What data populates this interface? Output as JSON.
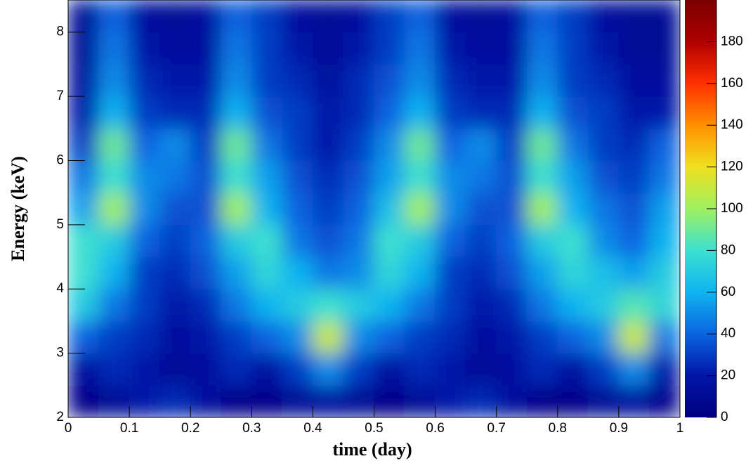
{
  "chart_data": {
    "type": "heatmap",
    "xlabel": "time (day)",
    "ylabel": "Energy (keV)",
    "xlim": [
      0,
      1
    ],
    "xticks": [
      0,
      0.1,
      0.2,
      0.3,
      0.4,
      0.5,
      0.6,
      0.7,
      0.8,
      0.9,
      1
    ],
    "ylim": [
      2,
      8.5
    ],
    "yticks": [
      2,
      3,
      4,
      5,
      6,
      7,
      8
    ],
    "zlim": [
      0,
      200
    ],
    "zticks": [
      0,
      20,
      40,
      60,
      80,
      100,
      120,
      140,
      160,
      180
    ],
    "colormap": [
      "#00007f",
      "#0016a8",
      "#0a64e0",
      "#10b4f0",
      "#3ce0d0",
      "#a0f060",
      "#f0e020",
      "#ff9000",
      "#ff3000",
      "#b00000",
      "#7a0000"
    ],
    "x": [
      0.025,
      0.075,
      0.125,
      0.175,
      0.225,
      0.275,
      0.325,
      0.375,
      0.425,
      0.475,
      0.525,
      0.575,
      0.625,
      0.675,
      0.725,
      0.775,
      0.825,
      0.875,
      0.925,
      0.975
    ],
    "y": [
      2.25,
      2.75,
      3.25,
      3.75,
      4.25,
      4.75,
      5.25,
      5.75,
      6.25,
      6.75,
      7.25,
      7.75,
      8.25
    ],
    "z": [
      [
        5,
        10,
        20,
        25,
        15,
        5,
        5,
        10,
        15,
        10,
        5,
        10,
        20,
        25,
        15,
        5,
        5,
        10,
        15,
        5
      ],
      [
        15,
        25,
        20,
        10,
        15,
        25,
        15,
        30,
        50,
        30,
        15,
        25,
        20,
        10,
        15,
        25,
        15,
        30,
        50,
        20
      ],
      [
        40,
        30,
        25,
        15,
        20,
        30,
        40,
        50,
        110,
        50,
        40,
        30,
        25,
        15,
        20,
        30,
        40,
        50,
        110,
        45
      ],
      [
        70,
        45,
        30,
        20,
        25,
        45,
        60,
        70,
        80,
        70,
        60,
        45,
        30,
        20,
        25,
        45,
        60,
        70,
        85,
        75
      ],
      [
        80,
        60,
        30,
        25,
        35,
        55,
        75,
        60,
        45,
        50,
        75,
        60,
        30,
        25,
        35,
        55,
        75,
        65,
        55,
        70
      ],
      [
        80,
        70,
        40,
        30,
        40,
        70,
        80,
        45,
        35,
        45,
        80,
        70,
        40,
        30,
        40,
        70,
        80,
        50,
        40,
        60
      ],
      [
        55,
        100,
        50,
        35,
        35,
        100,
        60,
        40,
        30,
        40,
        65,
        100,
        50,
        35,
        35,
        100,
        60,
        45,
        35,
        55
      ],
      [
        45,
        80,
        50,
        45,
        35,
        80,
        55,
        35,
        25,
        35,
        55,
        80,
        50,
        45,
        35,
        80,
        55,
        35,
        30,
        45
      ],
      [
        30,
        90,
        40,
        50,
        30,
        90,
        45,
        30,
        20,
        30,
        50,
        90,
        40,
        50,
        30,
        90,
        45,
        30,
        25,
        40
      ],
      [
        20,
        60,
        30,
        25,
        25,
        60,
        35,
        30,
        20,
        25,
        40,
        60,
        30,
        25,
        25,
        60,
        35,
        30,
        20,
        20
      ],
      [
        15,
        50,
        25,
        20,
        20,
        50,
        30,
        25,
        15,
        25,
        35,
        50,
        25,
        20,
        20,
        50,
        30,
        25,
        15,
        15
      ],
      [
        10,
        45,
        20,
        15,
        15,
        45,
        30,
        20,
        10,
        20,
        30,
        45,
        20,
        15,
        15,
        45,
        30,
        20,
        10,
        10
      ],
      [
        10,
        40,
        15,
        10,
        15,
        40,
        30,
        15,
        10,
        15,
        30,
        40,
        15,
        10,
        15,
        40,
        30,
        15,
        10,
        10
      ]
    ]
  }
}
